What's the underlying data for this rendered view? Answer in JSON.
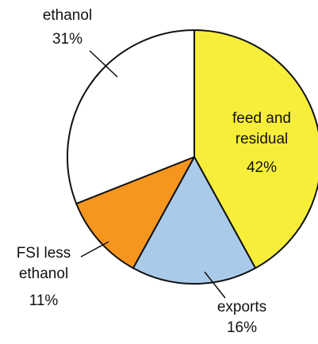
{
  "chart_data": {
    "type": "pie",
    "categories": [
      "feed and residual",
      "exports",
      "FSI less ethanol",
      "ethanol"
    ],
    "values": [
      42,
      16,
      11,
      31
    ],
    "value_labels": [
      "42%",
      "16%",
      "11%",
      "31%"
    ],
    "colors": [
      "#f7ee3a",
      "#a9cbe9",
      "#f7961e",
      "#ffffff"
    ]
  }
}
